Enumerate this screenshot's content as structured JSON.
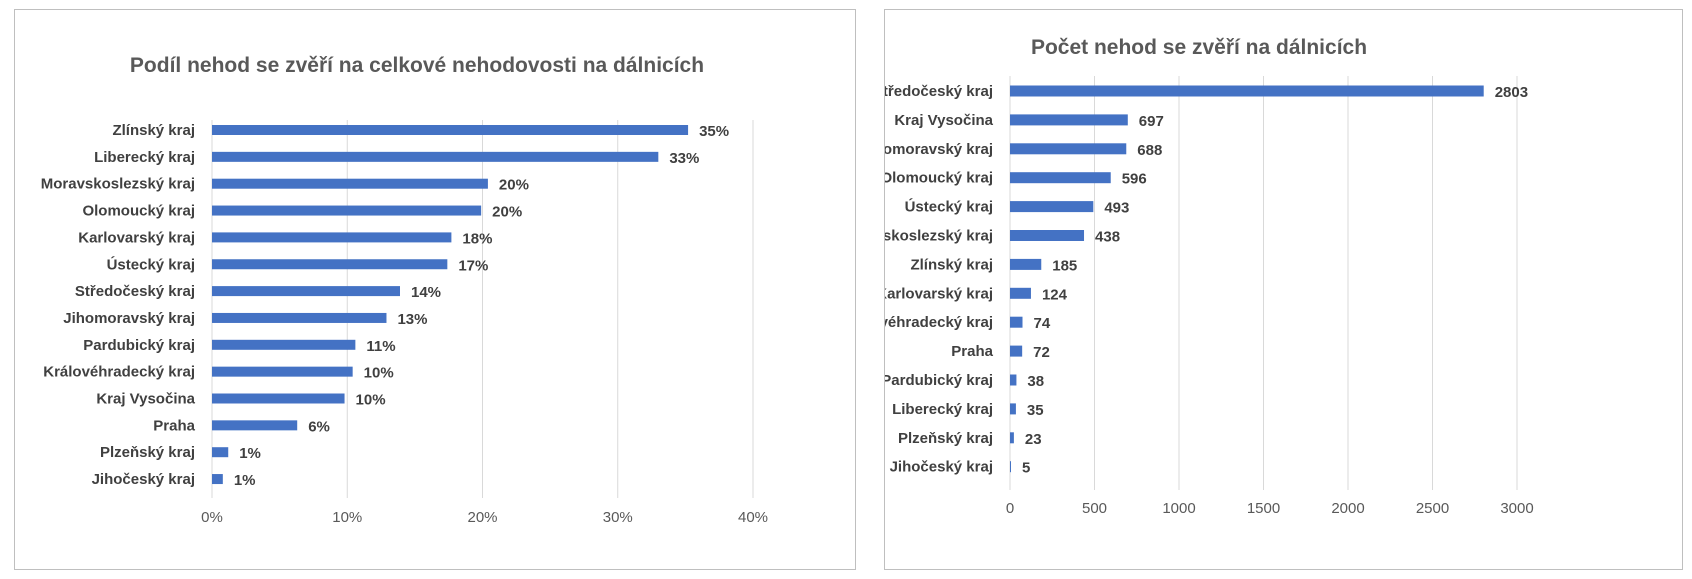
{
  "chart_data": [
    {
      "type": "bar",
      "orientation": "horizontal",
      "title": "Podíl nehod se zvěří na celkové nehodovosti na dálnicích",
      "categories": [
        "Zlínský kraj",
        "Liberecký kraj",
        "Moravskoslezský kraj",
        "Olomoucký kraj",
        "Karlovarský kraj",
        "Ústecký kraj",
        "Středočeský kraj",
        "Jihomoravský kraj",
        "Pardubický kraj",
        "Královéhradecký kraj",
        "Kraj Vysočina",
        "Praha",
        "Plzeňský kraj",
        "Jihočeský kraj"
      ],
      "values": [
        35.2,
        33.0,
        20.4,
        19.9,
        17.7,
        17.4,
        13.9,
        12.9,
        10.6,
        10.4,
        9.8,
        6.3,
        1.2,
        0.8
      ],
      "value_labels": [
        "35%",
        "33%",
        "20%",
        "20%",
        "18%",
        "17%",
        "14%",
        "13%",
        "11%",
        "10%",
        "10%",
        "6%",
        "1%",
        "1%"
      ],
      "xlim": [
        0,
        40
      ],
      "ticks": [
        0,
        10,
        20,
        30,
        40
      ],
      "tick_labels": [
        "0%",
        "10%",
        "20%",
        "30%",
        "40%"
      ],
      "grid": true,
      "bar_color": "#4472c4"
    },
    {
      "type": "bar",
      "orientation": "horizontal",
      "title": "Počet nehod se zvěří na dálnicích",
      "categories": [
        "Středočeský kraj",
        "Kraj Vysočina",
        "Jihomoravský kraj",
        "Olomoucký kraj",
        "Ústecký kraj",
        "Moravskoslezský kraj",
        "Zlínský kraj",
        "Karlovarský kraj",
        "Královéhradecký kraj",
        "Praha",
        "Pardubický kraj",
        "Liberecký kraj",
        "Plzeňský kraj",
        "Jihočeský kraj"
      ],
      "values": [
        2803,
        697,
        688,
        596,
        493,
        438,
        185,
        124,
        74,
        72,
        38,
        35,
        23,
        5
      ],
      "value_labels": [
        "2803",
        "697",
        "688",
        "596",
        "493",
        "438",
        "185",
        "124",
        "74",
        "72",
        "38",
        "35",
        "23",
        "5"
      ],
      "xlim": [
        0,
        3000
      ],
      "ticks": [
        0,
        500,
        1000,
        1500,
        2000,
        2500,
        3000
      ],
      "tick_labels": [
        "0",
        "500",
        "1000",
        "1500",
        "2000",
        "2500",
        "3000"
      ],
      "grid": true,
      "bar_color": "#4472c4"
    }
  ]
}
